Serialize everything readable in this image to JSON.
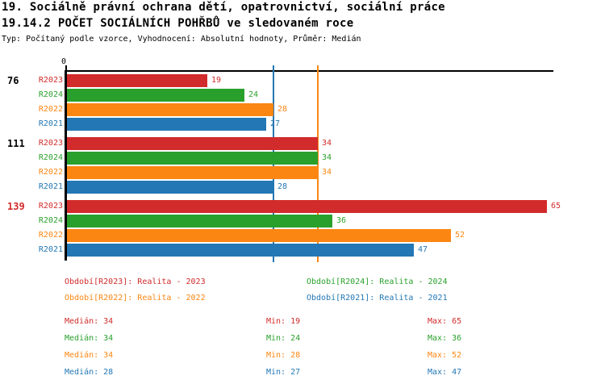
{
  "header": {
    "title_line1": "19. Sociálně právní ochrana dětí, opatrovnictví, sociální práce",
    "title_line2": "19.14.2 POČET SOCIÁLNÍCH POHŘBŮ ve sledovaném roce",
    "subtitle": "Typ: Počítaný podle vzorce, Vyhodnocení: Absolutní hodnoty, Průměr: Medián"
  },
  "colors": {
    "R2023": "#d22b2b",
    "R2024": "#2aa02c",
    "R2022": "#fb8612",
    "R2021": "#2377b4",
    "axis": "#000000",
    "highlight_row_label": "#d22b2b"
  },
  "chart_data": {
    "type": "bar",
    "orientation": "horizontal",
    "title": "19.14.2 POČET SOCIÁLNÍCH POHŘBŮ ve sledovaném roce",
    "xlim": [
      0,
      65
    ],
    "axis_zero_label": "0",
    "series_order": [
      "R2023",
      "R2024",
      "R2022",
      "R2021"
    ],
    "groups": [
      {
        "label": "76",
        "label_color": "#000000",
        "bars": [
          {
            "series": "R2023",
            "value": 19
          },
          {
            "series": "R2024",
            "value": 24
          },
          {
            "series": "R2022",
            "value": 28
          },
          {
            "series": "R2021",
            "value": 27
          }
        ]
      },
      {
        "label": "111",
        "label_color": "#000000",
        "bars": [
          {
            "series": "R2023",
            "value": 34
          },
          {
            "series": "R2024",
            "value": 34
          },
          {
            "series": "R2022",
            "value": 34
          },
          {
            "series": "R2021",
            "value": 28
          }
        ]
      },
      {
        "label": "139",
        "label_color": "#d22b2b",
        "bars": [
          {
            "series": "R2023",
            "value": 65
          },
          {
            "series": "R2024",
            "value": 36
          },
          {
            "series": "R2022",
            "value": 52
          },
          {
            "series": "R2021",
            "value": 47
          }
        ]
      }
    ],
    "reference_lines": [
      {
        "series": "R2021",
        "value": 28,
        "color": "#2377b4"
      },
      {
        "series": "R2022",
        "value": 34,
        "color": "#fb8612"
      }
    ],
    "legend_position": "bottom",
    "grid": false
  },
  "legend": {
    "items": [
      {
        "series": "R2023",
        "label": "Období[R2023]: Realita - 2023",
        "color": "#d22b2b"
      },
      {
        "series": "R2024",
        "label": "Období[R2024]: Realita - 2024",
        "color": "#2aa02c"
      },
      {
        "series": "R2022",
        "label": "Období[R2022]: Realita - 2022",
        "color": "#fb8612"
      },
      {
        "series": "R2021",
        "label": "Období[R2021]: Realita - 2021",
        "color": "#2377b4"
      }
    ]
  },
  "stats": {
    "rows": [
      {
        "series": "R2023",
        "color": "#d22b2b",
        "median": "Medián: 34",
        "min": "Min: 19",
        "max": "Max: 65"
      },
      {
        "series": "R2024",
        "color": "#2aa02c",
        "median": "Medián: 34",
        "min": "Min: 24",
        "max": "Max: 36"
      },
      {
        "series": "R2022",
        "color": "#fb8612",
        "median": "Medián: 34",
        "min": "Min: 28",
        "max": "Max: 52"
      },
      {
        "series": "R2021",
        "color": "#2377b4",
        "median": "Medián: 28",
        "min": "Min: 27",
        "max": "Max: 47"
      }
    ]
  }
}
